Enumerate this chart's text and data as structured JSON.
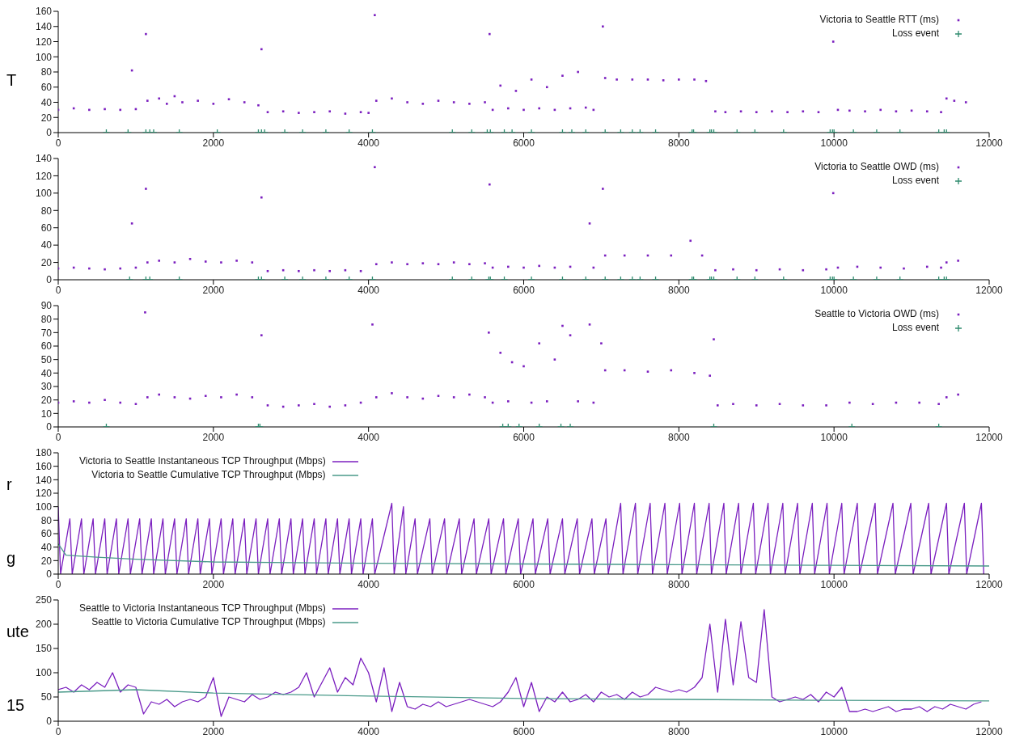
{
  "chart_data": [
    {
      "type": "scatter",
      "xlim": [
        0,
        12000
      ],
      "xticks": [
        0,
        2000,
        4000,
        6000,
        8000,
        10000,
        12000
      ],
      "ylim": [
        0,
        160
      ],
      "yticks": [
        0,
        20,
        40,
        60,
        80,
        100,
        120,
        140,
        160
      ],
      "legend": "top right",
      "annotations": [
        "T"
      ],
      "series": [
        {
          "name": "Victoria to Seattle RTT (ms)",
          "color": "#7b1fbf",
          "marker": "square",
          "x": [
            0,
            200,
            400,
            600,
            800,
            950,
            1000,
            1130,
            1150,
            1300,
            1400,
            1500,
            1600,
            1800,
            2000,
            2200,
            2400,
            2580,
            2620,
            2700,
            2900,
            3100,
            3300,
            3500,
            3700,
            3900,
            4000,
            4080,
            4100,
            4300,
            4500,
            4700,
            4900,
            5100,
            5300,
            5500,
            5560,
            5600,
            5700,
            5800,
            5900,
            6000,
            6100,
            6200,
            6300,
            6400,
            6500,
            6600,
            6700,
            6800,
            6900,
            7020,
            7050,
            7200,
            7400,
            7600,
            7800,
            8000,
            8200,
            8350,
            8470,
            8600,
            8800,
            9000,
            9200,
            9400,
            9600,
            9800,
            9990,
            10050,
            10200,
            10400,
            10600,
            10800,
            11000,
            11200,
            11380,
            11450,
            11550,
            11700
          ],
          "values": [
            30,
            32,
            30,
            31,
            30,
            82,
            31,
            130,
            42,
            45,
            38,
            48,
            40,
            42,
            38,
            44,
            40,
            36,
            110,
            27,
            28,
            26,
            27,
            28,
            25,
            27,
            26,
            155,
            42,
            45,
            40,
            38,
            42,
            40,
            38,
            40,
            130,
            30,
            62,
            32,
            55,
            30,
            70,
            32,
            60,
            30,
            75,
            32,
            80,
            33,
            30,
            140,
            72,
            70,
            70,
            70,
            69,
            70,
            70,
            68,
            28,
            27,
            28,
            27,
            28,
            27,
            28,
            27,
            120,
            30,
            29,
            28,
            30,
            28,
            29,
            28,
            27,
            45,
            42,
            40
          ]
        },
        {
          "name": "Loss event",
          "color": "#2e8b6e",
          "marker": "cross",
          "x": [
            620,
            900,
            1130,
            1180,
            1230,
            1560,
            2050,
            2580,
            2620,
            2660,
            2920,
            3150,
            3450,
            3750,
            4050,
            5080,
            5330,
            5530,
            5570,
            5750,
            5850,
            6100,
            6500,
            6620,
            6800,
            7050,
            7250,
            7400,
            7500,
            7700,
            8170,
            8190,
            8400,
            8420,
            8450,
            8750,
            8980,
            9350,
            9950,
            9980,
            10000,
            10250,
            10550,
            10850,
            11350,
            11420,
            11450
          ],
          "values": [
            0,
            0,
            0,
            0,
            0,
            0,
            0,
            0,
            0,
            0,
            0,
            0,
            0,
            0,
            0,
            0,
            0,
            0,
            0,
            0,
            0,
            0,
            0,
            0,
            0,
            0,
            0,
            0,
            0,
            0,
            0,
            0,
            0,
            0,
            0,
            0,
            0,
            0,
            0,
            0,
            0,
            0,
            0,
            0,
            0,
            0,
            0
          ]
        }
      ]
    },
    {
      "type": "scatter",
      "xlim": [
        0,
        12000
      ],
      "xticks": [
        0,
        2000,
        4000,
        6000,
        8000,
        10000,
        12000
      ],
      "ylim": [
        0,
        140
      ],
      "yticks": [
        0,
        20,
        40,
        60,
        80,
        100,
        120,
        140
      ],
      "legend": "top right",
      "series": [
        {
          "name": "Victoria to Seattle OWD (ms)",
          "color": "#7b1fbf",
          "marker": "square",
          "x": [
            0,
            200,
            400,
            600,
            800,
            950,
            1000,
            1130,
            1150,
            1300,
            1500,
            1700,
            1900,
            2100,
            2300,
            2500,
            2620,
            2700,
            2900,
            3100,
            3300,
            3500,
            3700,
            3900,
            4080,
            4100,
            4300,
            4500,
            4700,
            4900,
            5100,
            5300,
            5500,
            5560,
            5600,
            5800,
            6000,
            6200,
            6400,
            6600,
            6850,
            6900,
            7020,
            7050,
            7300,
            7600,
            7900,
            8150,
            8300,
            8470,
            8700,
            9000,
            9300,
            9600,
            9900,
            9990,
            10050,
            10300,
            10600,
            10900,
            11200,
            11380,
            11450,
            11600
          ],
          "values": [
            13,
            14,
            13,
            12,
            13,
            65,
            14,
            105,
            20,
            22,
            20,
            24,
            21,
            20,
            22,
            20,
            95,
            10,
            11,
            10,
            11,
            10,
            11,
            10,
            130,
            18,
            20,
            18,
            19,
            18,
            20,
            18,
            19,
            110,
            14,
            15,
            14,
            16,
            14,
            15,
            65,
            14,
            105,
            28,
            28,
            28,
            28,
            45,
            28,
            11,
            12,
            11,
            12,
            11,
            12,
            100,
            14,
            15,
            14,
            13,
            15,
            14,
            20,
            22
          ]
        },
        {
          "name": "Loss event",
          "color": "#2e8b6e",
          "marker": "cross",
          "x": [
            920,
            1130,
            1180,
            1560,
            2580,
            2620,
            2920,
            3150,
            3450,
            3750,
            4050,
            5080,
            5330,
            5550,
            5570,
            5750,
            6100,
            6500,
            6800,
            7050,
            7250,
            7400,
            7500,
            7700,
            8170,
            8190,
            8400,
            8420,
            8450,
            8750,
            8980,
            9350,
            9950,
            9980,
            10000,
            10250,
            10550,
            10850,
            11350,
            11420,
            11450
          ],
          "values": [
            0,
            0,
            0,
            0,
            0,
            0,
            0,
            0,
            0,
            0,
            0,
            0,
            0,
            0,
            0,
            0,
            0,
            0,
            0,
            0,
            0,
            0,
            0,
            0,
            0,
            0,
            0,
            0,
            0,
            0,
            0,
            0,
            0,
            0,
            0,
            0,
            0,
            0,
            0,
            0,
            0
          ]
        }
      ]
    },
    {
      "type": "scatter",
      "xlim": [
        0,
        12000
      ],
      "xticks": [
        0,
        2000,
        4000,
        6000,
        8000,
        10000,
        12000
      ],
      "ylim": [
        0,
        90
      ],
      "yticks": [
        0,
        10,
        20,
        30,
        40,
        50,
        60,
        70,
        80,
        90
      ],
      "legend": "top right",
      "series": [
        {
          "name": "Seattle to Victoria OWD (ms)",
          "color": "#7b1fbf",
          "marker": "square",
          "x": [
            0,
            200,
            400,
            600,
            800,
            1000,
            1120,
            1150,
            1300,
            1500,
            1700,
            1900,
            2100,
            2300,
            2500,
            2620,
            2700,
            2900,
            3100,
            3300,
            3500,
            3700,
            3900,
            4050,
            4100,
            4300,
            4500,
            4700,
            4900,
            5100,
            5300,
            5500,
            5550,
            5600,
            5700,
            5800,
            5850,
            6000,
            6100,
            6200,
            6300,
            6400,
            6500,
            6600,
            6700,
            6850,
            6900,
            7000,
            7050,
            7300,
            7600,
            7900,
            8200,
            8400,
            8450,
            8500,
            8700,
            9000,
            9300,
            9600,
            9900,
            10200,
            10500,
            10800,
            11100,
            11350,
            11450,
            11600
          ],
          "values": [
            18,
            19,
            18,
            20,
            18,
            17,
            85,
            22,
            24,
            22,
            21,
            23,
            22,
            24,
            22,
            68,
            16,
            15,
            16,
            17,
            15,
            16,
            18,
            76,
            22,
            25,
            22,
            21,
            23,
            22,
            24,
            22,
            70,
            18,
            55,
            19,
            48,
            45,
            18,
            62,
            19,
            50,
            75,
            68,
            19,
            76,
            18,
            62,
            42,
            42,
            41,
            42,
            40,
            38,
            65,
            16,
            17,
            16,
            17,
            16,
            16,
            18,
            17,
            18,
            18,
            17,
            22,
            24
          ]
        },
        {
          "name": "Loss event",
          "color": "#2e8b6e",
          "marker": "cross",
          "x": [
            620,
            2580,
            2600,
            5730,
            5800,
            5940,
            6200,
            6480,
            6600,
            8450,
            10230,
            11350
          ],
          "values": [
            0,
            0,
            0,
            0,
            0,
            0,
            0,
            0,
            0,
            0,
            0,
            0
          ]
        }
      ]
    },
    {
      "type": "line",
      "xlim": [
        0,
        12000
      ],
      "xticks": [
        0,
        2000,
        4000,
        6000,
        8000,
        10000,
        12000
      ],
      "ylim": [
        0,
        180
      ],
      "yticks": [
        0,
        20,
        40,
        60,
        80,
        100,
        120,
        140,
        160,
        180
      ],
      "legend": "top left",
      "annotations": [
        "r",
        "g"
      ],
      "series": [
        {
          "name": "Victoria to Seattle Instantaneous TCP Throughput (Mbps)",
          "color": "#7b1fbf",
          "x": [
            0,
            30,
            150,
            180,
            300,
            330,
            450,
            480,
            600,
            630,
            750,
            780,
            900,
            930,
            1050,
            1080,
            1200,
            1230,
            1350,
            1380,
            1500,
            1530,
            1650,
            1680,
            1800,
            1830,
            1950,
            1980,
            2100,
            2130,
            2250,
            2280,
            2400,
            2430,
            2550,
            2580,
            2700,
            2730,
            2850,
            2880,
            3000,
            3030,
            3150,
            3180,
            3300,
            3330,
            3450,
            3480,
            3600,
            3630,
            3750,
            3780,
            3900,
            3930,
            4050,
            4080,
            4300,
            4330,
            4450,
            4480,
            4600,
            4630,
            4790,
            4820,
            4980,
            5010,
            5170,
            5200,
            5360,
            5390,
            5550,
            5580,
            5740,
            5770,
            5930,
            5960,
            6120,
            6150,
            6310,
            6340,
            6500,
            6530,
            6690,
            6720,
            6880,
            6910,
            7060,
            7090,
            7250,
            7280,
            7440,
            7470,
            7630,
            7660,
            7820,
            7850,
            8010,
            8040,
            8200,
            8230,
            8390,
            8420,
            8580,
            8610,
            8770,
            8800,
            8960,
            8990,
            9150,
            9180,
            9340,
            9370,
            9530,
            9560,
            9720,
            9750,
            9910,
            9940,
            10100,
            10130,
            10300,
            10330,
            10530,
            10560,
            10760,
            10790,
            10990,
            11020,
            11220,
            11250,
            11450,
            11480,
            11680,
            11710,
            11900,
            11930
          ],
          "values": [
            100,
            0,
            82,
            0,
            82,
            0,
            82,
            0,
            82,
            0,
            82,
            0,
            82,
            0,
            82,
            0,
            82,
            0,
            82,
            0,
            82,
            0,
            82,
            0,
            82,
            0,
            82,
            0,
            82,
            0,
            82,
            0,
            82,
            0,
            82,
            0,
            82,
            0,
            82,
            0,
            82,
            0,
            82,
            0,
            82,
            0,
            82,
            0,
            82,
            0,
            82,
            0,
            82,
            0,
            82,
            0,
            105,
            0,
            100,
            0,
            82,
            0,
            82,
            0,
            82,
            0,
            82,
            0,
            82,
            0,
            82,
            0,
            82,
            0,
            82,
            0,
            82,
            0,
            82,
            0,
            82,
            0,
            82,
            0,
            82,
            0,
            82,
            0,
            105,
            0,
            105,
            0,
            105,
            0,
            105,
            0,
            105,
            0,
            105,
            0,
            105,
            0,
            105,
            0,
            105,
            0,
            105,
            0,
            105,
            0,
            105,
            0,
            105,
            0,
            105,
            0,
            105,
            0,
            105,
            0,
            105,
            0,
            105,
            0,
            105,
            0,
            105,
            0,
            105,
            0,
            105,
            0,
            105,
            0,
            105,
            0
          ]
        },
        {
          "name": "Victoria to Seattle Cumulative TCP Throughput (Mbps)",
          "color": "#4a9a8a",
          "x": [
            0,
            100,
            500,
            1000,
            2000,
            3000,
            4000,
            6000,
            8000,
            10000,
            12000
          ],
          "values": [
            45,
            28,
            25,
            22,
            18,
            17,
            16,
            15,
            14,
            13,
            12
          ]
        }
      ]
    },
    {
      "type": "line",
      "xlim": [
        0,
        12000
      ],
      "xticks": [
        0,
        2000,
        4000,
        6000,
        8000,
        10000,
        12000
      ],
      "ylim": [
        0,
        250
      ],
      "yticks": [
        0,
        50,
        100,
        150,
        200,
        250
      ],
      "legend": "top left",
      "annotations": [
        "ute",
        "15"
      ],
      "series": [
        {
          "name": "Seattle to Victoria Instantaneous TCP Throughput (Mbps)",
          "color": "#7b1fbf",
          "x": [
            0,
            100,
            200,
            300,
            400,
            500,
            600,
            700,
            800,
            900,
            1000,
            1100,
            1200,
            1300,
            1400,
            1500,
            1600,
            1700,
            1800,
            1900,
            2000,
            2100,
            2200,
            2300,
            2400,
            2500,
            2600,
            2700,
            2800,
            2900,
            3000,
            3100,
            3200,
            3300,
            3400,
            3500,
            3600,
            3700,
            3800,
            3900,
            4000,
            4100,
            4200,
            4300,
            4400,
            4500,
            4600,
            4700,
            4800,
            4900,
            5000,
            5100,
            5200,
            5300,
            5400,
            5500,
            5600,
            5700,
            5800,
            5900,
            6000,
            6100,
            6200,
            6300,
            6400,
            6500,
            6600,
            6700,
            6800,
            6900,
            7000,
            7100,
            7200,
            7300,
            7400,
            7500,
            7600,
            7700,
            7800,
            7900,
            8000,
            8100,
            8200,
            8300,
            8400,
            8500,
            8600,
            8700,
            8800,
            8900,
            9000,
            9100,
            9200,
            9300,
            9400,
            9500,
            9600,
            9700,
            9800,
            9900,
            10000,
            10100,
            10200,
            10300,
            10400,
            10500,
            10600,
            10700,
            10800,
            10900,
            11000,
            11100,
            11200,
            11300,
            11400,
            11500,
            11600,
            11700,
            11800,
            11900
          ],
          "values": [
            65,
            70,
            60,
            75,
            65,
            80,
            70,
            100,
            60,
            75,
            70,
            15,
            40,
            35,
            45,
            30,
            40,
            45,
            40,
            50,
            90,
            10,
            50,
            45,
            40,
            55,
            45,
            50,
            60,
            55,
            60,
            70,
            100,
            50,
            80,
            110,
            60,
            90,
            75,
            130,
            100,
            40,
            110,
            20,
            80,
            30,
            25,
            35,
            30,
            40,
            30,
            35,
            40,
            45,
            40,
            35,
            30,
            40,
            60,
            90,
            30,
            80,
            20,
            50,
            40,
            60,
            40,
            45,
            55,
            40,
            60,
            50,
            55,
            45,
            60,
            50,
            55,
            70,
            65,
            60,
            65,
            60,
            70,
            90,
            200,
            60,
            210,
            75,
            205,
            90,
            80,
            230,
            50,
            40,
            45,
            50,
            45,
            55,
            40,
            60,
            50,
            70,
            20,
            20,
            25,
            20,
            25,
            30,
            20,
            25,
            25,
            30,
            20,
            30,
            25,
            35,
            30,
            25,
            35,
            40
          ]
        },
        {
          "name": "Seattle to Victoria Cumulative TCP Throughput (Mbps)",
          "color": "#4a9a8a",
          "x": [
            0,
            1000,
            2000,
            4000,
            6000,
            8000,
            10000,
            12000
          ],
          "values": [
            60,
            65,
            58,
            52,
            47,
            45,
            43,
            42
          ]
        }
      ]
    }
  ]
}
